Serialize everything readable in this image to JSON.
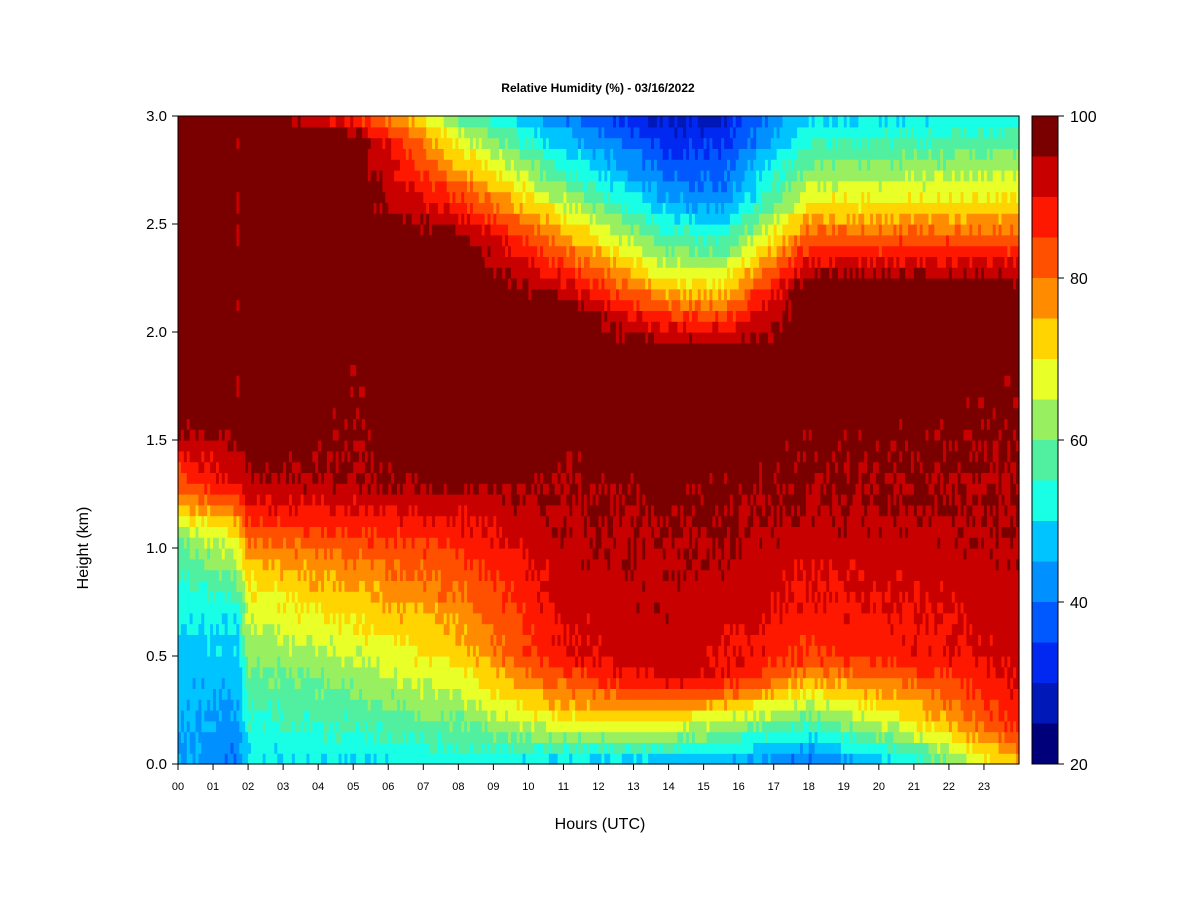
{
  "chart_data": {
    "type": "heatmap",
    "title": "Relative Humidity (%) - 03/16/2022",
    "xlabel": "Hours (UTC)",
    "ylabel": "Height (km)",
    "x_ticks": [
      "00",
      "01",
      "02",
      "03",
      "04",
      "05",
      "06",
      "07",
      "08",
      "09",
      "10",
      "11",
      "12",
      "13",
      "14",
      "15",
      "16",
      "17",
      "18",
      "19",
      "20",
      "21",
      "22",
      "23"
    ],
    "y_ticks": [
      "0.0",
      "0.5",
      "1.0",
      "1.5",
      "2.0",
      "2.5",
      "3.0"
    ],
    "xlim": [
      0,
      24
    ],
    "ylim": [
      0,
      3.0
    ],
    "colorbar": {
      "ticks": [
        "20",
        "40",
        "60",
        "80",
        "100"
      ],
      "range": [
        20,
        100
      ],
      "levels": [
        20,
        25,
        30,
        35,
        40,
        45,
        50,
        55,
        60,
        65,
        70,
        75,
        80,
        85,
        90,
        95,
        100
      ],
      "colors": [
        "#00007a",
        "#0018b8",
        "#0028f0",
        "#0058ff",
        "#0090ff",
        "#00c4ff",
        "#18ffe6",
        "#50f0a0",
        "#98f060",
        "#e8ff28",
        "#ffd400",
        "#ff8c00",
        "#ff5000",
        "#ff1800",
        "#c80000",
        "#7a0000"
      ]
    },
    "grid": false,
    "z_description_profiles": [
      {
        "hour": 0,
        "rh": [
          {
            "h": 0.0,
            "v": 45
          },
          {
            "h": 0.6,
            "v": 48
          },
          {
            "h": 1.0,
            "v": 58
          },
          {
            "h": 1.3,
            "v": 82
          },
          {
            "h": 1.6,
            "v": 98
          },
          {
            "h": 3.0,
            "v": 100
          }
        ]
      },
      {
        "hour": 1.7,
        "rh": [
          {
            "h": 0.0,
            "v": 40
          },
          {
            "h": 0.7,
            "v": 52
          },
          {
            "h": 1.1,
            "v": 72
          },
          {
            "h": 1.3,
            "v": 92
          },
          {
            "h": 1.7,
            "v": 100
          },
          {
            "h": 3.0,
            "v": 100
          }
        ]
      },
      {
        "hour": 2,
        "rh": [
          {
            "h": 0.0,
            "v": 50
          },
          {
            "h": 0.4,
            "v": 58
          },
          {
            "h": 0.9,
            "v": 72
          },
          {
            "h": 1.2,
            "v": 90
          },
          {
            "h": 1.5,
            "v": 100
          },
          {
            "h": 3.0,
            "v": 100
          }
        ]
      },
      {
        "hour": 5,
        "rh": [
          {
            "h": 0.0,
            "v": 50
          },
          {
            "h": 0.4,
            "v": 62
          },
          {
            "h": 0.9,
            "v": 78
          },
          {
            "h": 1.3,
            "v": 95
          },
          {
            "h": 2.9,
            "v": 100
          },
          {
            "h": 3.0,
            "v": 85
          }
        ]
      },
      {
        "hour": 8,
        "rh": [
          {
            "h": 0.0,
            "v": 52
          },
          {
            "h": 0.5,
            "v": 72
          },
          {
            "h": 1.0,
            "v": 85
          },
          {
            "h": 1.4,
            "v": 100
          },
          {
            "h": 2.4,
            "v": 100
          },
          {
            "h": 3.0,
            "v": 60
          }
        ]
      },
      {
        "hour": 11,
        "rh": [
          {
            "h": 0.0,
            "v": 48
          },
          {
            "h": 0.2,
            "v": 70
          },
          {
            "h": 0.5,
            "v": 90
          },
          {
            "h": 1.2,
            "v": 95
          },
          {
            "h": 2.1,
            "v": 100
          },
          {
            "h": 2.6,
            "v": 65
          },
          {
            "h": 3.0,
            "v": 40
          }
        ]
      },
      {
        "hour": 14,
        "rh": [
          {
            "h": 0.0,
            "v": 45
          },
          {
            "h": 0.15,
            "v": 65
          },
          {
            "h": 0.4,
            "v": 92
          },
          {
            "h": 1.0,
            "v": 95
          },
          {
            "h": 1.9,
            "v": 100
          },
          {
            "h": 2.3,
            "v": 65
          },
          {
            "h": 2.7,
            "v": 40
          },
          {
            "h": 3.0,
            "v": 28
          }
        ]
      },
      {
        "hour": 15.5,
        "rh": [
          {
            "h": 0.0,
            "v": 45
          },
          {
            "h": 0.2,
            "v": 65
          },
          {
            "h": 0.4,
            "v": 90
          },
          {
            "h": 1.0,
            "v": 95
          },
          {
            "h": 1.9,
            "v": 100
          },
          {
            "h": 2.2,
            "v": 72
          },
          {
            "h": 2.6,
            "v": 42
          },
          {
            "h": 3.0,
            "v": 30
          }
        ]
      },
      {
        "hour": 18,
        "rh": [
          {
            "h": 0.0,
            "v": 38
          },
          {
            "h": 0.25,
            "v": 62
          },
          {
            "h": 0.5,
            "v": 85
          },
          {
            "h": 1.2,
            "v": 95
          },
          {
            "h": 2.2,
            "v": 100
          },
          {
            "h": 2.6,
            "v": 70
          },
          {
            "h": 3.0,
            "v": 48
          }
        ]
      },
      {
        "hour": 21,
        "rh": [
          {
            "h": 0.0,
            "v": 52
          },
          {
            "h": 0.2,
            "v": 70
          },
          {
            "h": 0.5,
            "v": 88
          },
          {
            "h": 1.2,
            "v": 95
          },
          {
            "h": 2.2,
            "v": 100
          },
          {
            "h": 2.6,
            "v": 70
          },
          {
            "h": 3.0,
            "v": 50
          }
        ]
      },
      {
        "hour": 24,
        "rh": [
          {
            "h": 0.0,
            "v": 75
          },
          {
            "h": 0.2,
            "v": 88
          },
          {
            "h": 0.5,
            "v": 92
          },
          {
            "h": 1.2,
            "v": 95
          },
          {
            "h": 2.2,
            "v": 98
          },
          {
            "h": 2.6,
            "v": 72
          },
          {
            "h": 3.0,
            "v": 52
          }
        ]
      }
    ]
  }
}
